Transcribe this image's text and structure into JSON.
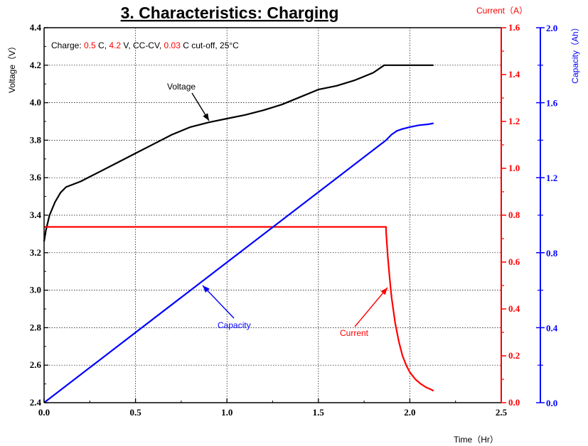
{
  "chart_data": {
    "type": "line",
    "title": "3. Characteristics: Charging",
    "note": {
      "parts": [
        {
          "text": "Charge: ",
          "color": "#000000"
        },
        {
          "text": "0.5",
          "color": "#ff0000"
        },
        {
          "text": " C, ",
          "color": "#000000"
        },
        {
          "text": "4.2",
          "color": "#ff0000"
        },
        {
          "text": " V, CC-CV, ",
          "color": "#000000"
        },
        {
          "text": "0.03",
          "color": "#ff0000"
        },
        {
          "text": " C cut-off, 25°C",
          "color": "#000000"
        }
      ]
    },
    "xlabel": "Time（Hr）",
    "xlim": [
      0,
      2.5
    ],
    "xticks": [
      "0.0",
      "0.5",
      "1.0",
      "1.5",
      "2.0",
      "2.5"
    ],
    "y_left": {
      "label": "Voltage（V）",
      "lim": [
        2.4,
        4.4
      ],
      "ticks": [
        "2.4",
        "2.6",
        "2.8",
        "3.0",
        "3.2",
        "3.4",
        "3.6",
        "3.8",
        "4.0",
        "4.2",
        "4.4"
      ],
      "color": "#000000"
    },
    "y_right1": {
      "label": "Current（A）",
      "lim": [
        0,
        1.6
      ],
      "ticks": [
        "0.0",
        "0.2",
        "0.4",
        "0.6",
        "0.8",
        "1.0",
        "1.2",
        "1.4",
        "1.6"
      ],
      "color": "#ff0000"
    },
    "y_right2": {
      "label": "Capacity（Ah）",
      "lim": [
        0,
        2.0
      ],
      "ticks": [
        "0.0",
        "0.4",
        "0.8",
        "1.2",
        "1.6",
        "2.0"
      ],
      "color": "#0000ff"
    },
    "grid": true,
    "series": [
      {
        "name": "Voltage",
        "axis": "y_left",
        "color": "#000000",
        "x": [
          0,
          0.01,
          0.03,
          0.06,
          0.09,
          0.12,
          0.2,
          0.3,
          0.4,
          0.5,
          0.6,
          0.7,
          0.8,
          0.9,
          1.0,
          1.1,
          1.2,
          1.3,
          1.4,
          1.5,
          1.6,
          1.7,
          1.8,
          1.86,
          1.9,
          2.0,
          2.1,
          2.13
        ],
        "values": [
          3.26,
          3.32,
          3.4,
          3.47,
          3.52,
          3.55,
          3.58,
          3.63,
          3.68,
          3.73,
          3.78,
          3.83,
          3.87,
          3.895,
          3.915,
          3.935,
          3.96,
          3.99,
          4.03,
          4.07,
          4.09,
          4.12,
          4.16,
          4.2,
          4.2,
          4.2,
          4.2,
          4.2
        ]
      },
      {
        "name": "Current",
        "axis": "y_right1",
        "color": "#ff0000",
        "x": [
          0,
          1.87,
          1.87,
          1.88,
          1.89,
          1.9,
          1.92,
          1.94,
          1.96,
          1.98,
          2.0,
          2.03,
          2.06,
          2.09,
          2.12,
          2.13
        ],
        "values": [
          0.75,
          0.75,
          0.73,
          0.62,
          0.53,
          0.45,
          0.34,
          0.26,
          0.2,
          0.16,
          0.13,
          0.1,
          0.08,
          0.065,
          0.055,
          0.05
        ]
      },
      {
        "name": "Capacity",
        "axis": "y_right2",
        "color": "#0000ff",
        "x": [
          0,
          1.87,
          1.9,
          1.93,
          1.96,
          2.0,
          2.05,
          2.1,
          2.13
        ],
        "values": [
          0,
          1.4,
          1.43,
          1.45,
          1.46,
          1.47,
          1.48,
          1.485,
          1.49
        ]
      }
    ],
    "annotations": [
      {
        "text": "Voltage",
        "color": "#000000"
      },
      {
        "text": "Capacity",
        "color": "#0000ff"
      },
      {
        "text": "Current",
        "color": "#ff0000"
      }
    ]
  }
}
